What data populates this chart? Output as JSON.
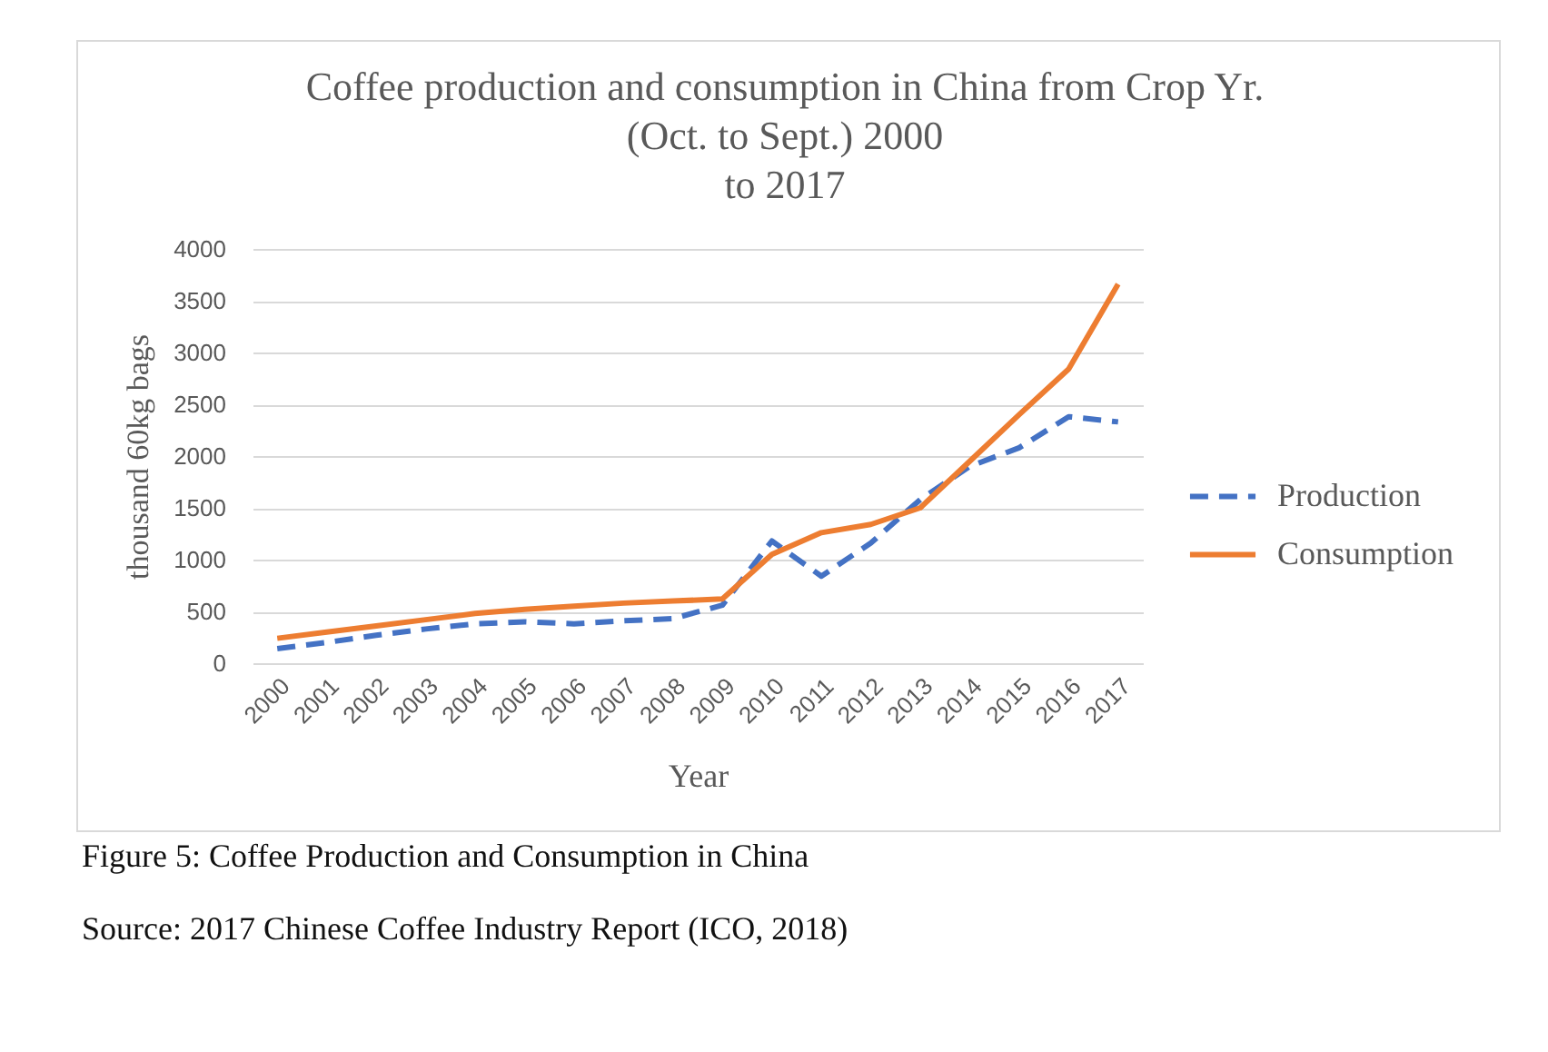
{
  "chart_data": {
    "type": "line",
    "title": "Coffee  production and consumption in China from Crop Yr.\n(Oct. to Sept.) 2000\nto 2017",
    "xlabel": "Year",
    "ylabel": "thousand 60kg bags",
    "categories": [
      "2000",
      "2001",
      "2002",
      "2003",
      "2004",
      "2005",
      "2006",
      "2007",
      "2008",
      "2009",
      "2010",
      "2011",
      "2012",
      "2013",
      "2014",
      "2015",
      "2016",
      "2017"
    ],
    "series": [
      {
        "name": "Production",
        "color": "#4472c4",
        "line_style": "dashed",
        "values": [
          140,
          200,
          270,
          330,
          380,
          400,
          380,
          410,
          430,
          560,
          1180,
          840,
          1160,
          1580,
          1900,
          2080,
          2380,
          2330
        ]
      },
      {
        "name": "Consumption",
        "color": "#ed7d31",
        "line_style": "solid",
        "values": [
          240,
          300,
          360,
          420,
          480,
          520,
          550,
          580,
          600,
          620,
          1050,
          1260,
          1340,
          1500,
          1950,
          2400,
          2840,
          3660
        ]
      }
    ],
    "ylim": [
      0,
      4000
    ],
    "yticks": [
      0,
      500,
      1000,
      1500,
      2000,
      2500,
      3000,
      3500,
      4000
    ],
    "grid": "y",
    "legend": "right",
    "annotations": [
      "Figure 5: Coffee Production and Consumption in China",
      "Source: 2017 Chinese Coffee Industry Report (ICO, 2018)"
    ]
  }
}
